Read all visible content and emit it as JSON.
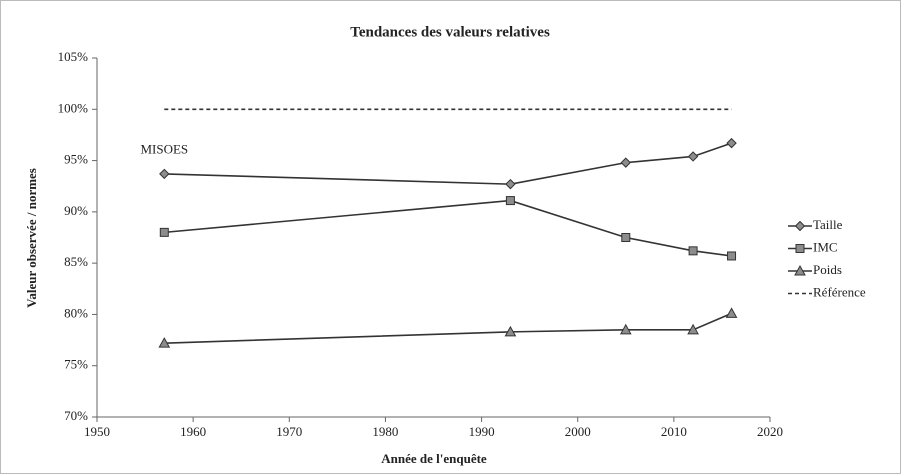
{
  "chart_data": {
    "type": "line",
    "title": "Tendances des valeurs relatives",
    "x_label": "Année de l'enquête",
    "y_label": "Valeur observée / normes",
    "x": [
      1957,
      1993,
      2005,
      2012,
      2016
    ],
    "series": [
      {
        "name": "Taille",
        "color": "#333333",
        "marker": "diamond",
        "dashed": false,
        "values": [
          93.7,
          92.7,
          94.8,
          95.4,
          96.7
        ]
      },
      {
        "name": "IMC",
        "color": "#333333",
        "marker": "square",
        "dashed": false,
        "values": [
          88.0,
          91.1,
          87.5,
          86.2,
          85.7
        ]
      },
      {
        "name": "Poids",
        "color": "#333333",
        "marker": "triangle",
        "dashed": false,
        "values": [
          77.2,
          78.3,
          78.5,
          78.5,
          80.1
        ]
      },
      {
        "name": "Référence",
        "color": "#333333",
        "marker": "none",
        "dashed": true,
        "values": [
          100,
          100,
          100,
          100,
          100
        ]
      }
    ],
    "annotations": [
      {
        "text": "MISOES",
        "x": 1957,
        "y": 96
      }
    ],
    "xlim": [
      1950,
      2020
    ],
    "xticks": [
      1950,
      1960,
      1970,
      1980,
      1990,
      2000,
      2010,
      2020
    ],
    "ylim": [
      70,
      105
    ],
    "yticks": [
      {
        "value": 70,
        "label": "70%"
      },
      {
        "value": 75,
        "label": "75%"
      },
      {
        "value": 80,
        "label": "80%"
      },
      {
        "value": 85,
        "label": "85%"
      },
      {
        "value": 90,
        "label": "90%"
      },
      {
        "value": 95,
        "label": "95%"
      },
      {
        "value": 100,
        "label": "100%"
      },
      {
        "value": 105,
        "label": "105%"
      }
    ],
    "legend": "right"
  }
}
